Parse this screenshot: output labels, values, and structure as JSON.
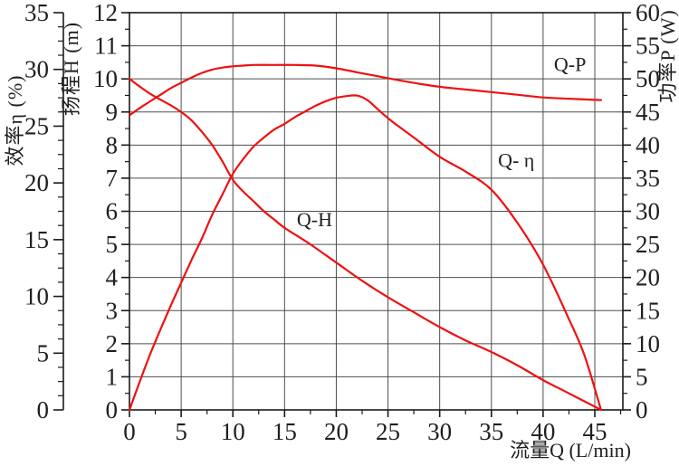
{
  "chart_data": {
    "type": "line",
    "title": "",
    "background": "#ffffff",
    "curve_color": "#ee1111",
    "grid_color": "#4d4d4d",
    "axis_color": "#1a1a1a",
    "text_color": "#1f1f1f",
    "grid": "on",
    "x_axis": {
      "title": "流量Q (L/min)",
      "min": 0,
      "max": 47.7,
      "major_ticks": [
        0,
        5,
        10,
        15,
        20,
        25,
        30,
        35,
        40,
        45
      ],
      "minor_step": 2.5
    },
    "left_outer_axis": {
      "title": "效率η (%)",
      "min": 0,
      "max": 35,
      "major_ticks": [
        0,
        5,
        10,
        15,
        20,
        25,
        30,
        35
      ],
      "minor_step": 1.25
    },
    "left_inner_axis": {
      "title": "扬程H (m)",
      "min": 0,
      "max": 12,
      "major_ticks": [
        0,
        1,
        2,
        3,
        4,
        5,
        6,
        7,
        8,
        9,
        10,
        11,
        12
      ],
      "minor_step": 0.5
    },
    "right_axis": {
      "title": "功率P (W)",
      "min": 0,
      "max": 60,
      "major_ticks": [
        0,
        5,
        10,
        15,
        20,
        25,
        30,
        35,
        40,
        45,
        50,
        55,
        60
      ],
      "minor_step": 2.5
    },
    "series": [
      {
        "name": "Q-H",
        "axis": "head",
        "points": [
          [
            0,
            10.0
          ],
          [
            2,
            9.55
          ],
          [
            4,
            9.2
          ],
          [
            5,
            9.0
          ],
          [
            6,
            8.75
          ],
          [
            7,
            8.4
          ],
          [
            8,
            8.0
          ],
          [
            9,
            7.5
          ],
          [
            10,
            6.95
          ],
          [
            11,
            6.6
          ],
          [
            12,
            6.3
          ],
          [
            13,
            6.0
          ],
          [
            14,
            5.75
          ],
          [
            15,
            5.5
          ],
          [
            17.5,
            5.0
          ],
          [
            20,
            4.45
          ],
          [
            22.5,
            3.9
          ],
          [
            25,
            3.4
          ],
          [
            27.5,
            2.95
          ],
          [
            30,
            2.5
          ],
          [
            32.5,
            2.1
          ],
          [
            35,
            1.75
          ],
          [
            37.5,
            1.35
          ],
          [
            40,
            0.9
          ],
          [
            42.5,
            0.5
          ],
          [
            45.6,
            0.0
          ]
        ]
      },
      {
        "name": "Q-η",
        "axis": "efficiency",
        "points": [
          [
            0,
            0
          ],
          [
            1,
            2.5
          ],
          [
            2,
            4.9
          ],
          [
            3,
            7.1
          ],
          [
            4,
            9.2
          ],
          [
            5,
            11.2
          ],
          [
            6,
            13.2
          ],
          [
            7,
            15.1
          ],
          [
            8,
            17.2
          ],
          [
            9,
            19.0
          ],
          [
            10,
            20.8
          ],
          [
            11,
            22.1
          ],
          [
            12,
            23.2
          ],
          [
            13,
            24.0
          ],
          [
            14,
            24.7
          ],
          [
            15,
            25.2
          ],
          [
            16,
            25.8
          ],
          [
            17,
            26.3
          ],
          [
            18,
            26.8
          ],
          [
            19,
            27.2
          ],
          [
            20,
            27.5
          ],
          [
            21,
            27.65
          ],
          [
            22,
            27.7
          ],
          [
            23,
            27.3
          ],
          [
            24,
            26.5
          ],
          [
            25,
            25.7
          ],
          [
            26,
            25.0
          ],
          [
            27.5,
            24.0
          ],
          [
            30,
            22.3
          ],
          [
            32.5,
            21.0
          ],
          [
            35,
            19.4
          ],
          [
            37.5,
            16.5
          ],
          [
            40,
            12.8
          ],
          [
            42.5,
            8.0
          ],
          [
            44,
            4.8
          ],
          [
            45.6,
            0.0
          ]
        ]
      },
      {
        "name": "Q-P",
        "axis": "power",
        "points": [
          [
            0,
            44.5
          ],
          [
            1,
            45.6
          ],
          [
            2,
            46.6
          ],
          [
            3,
            47.6
          ],
          [
            4,
            48.6
          ],
          [
            5,
            49.4
          ],
          [
            6,
            50.2
          ],
          [
            7,
            50.9
          ],
          [
            8,
            51.4
          ],
          [
            9,
            51.7
          ],
          [
            10,
            51.9
          ],
          [
            11,
            52.0
          ],
          [
            12,
            52.1
          ],
          [
            14,
            52.1
          ],
          [
            16,
            52.1
          ],
          [
            18,
            52.0
          ],
          [
            20,
            51.6
          ],
          [
            22,
            51.0
          ],
          [
            24,
            50.4
          ],
          [
            25,
            50.1
          ],
          [
            27.5,
            49.4
          ],
          [
            30,
            48.8
          ],
          [
            32.5,
            48.4
          ],
          [
            35,
            48.0
          ],
          [
            37.5,
            47.6
          ],
          [
            40,
            47.2
          ],
          [
            42.5,
            47.0
          ],
          [
            45.6,
            46.8
          ]
        ]
      }
    ],
    "curve_labels": [
      {
        "text": "Q-P",
        "axis": "power",
        "q": 42.6,
        "v": 51.2
      },
      {
        "text": "Q- η",
        "axis": "efficiency",
        "q": 37.4,
        "v": 21.4
      },
      {
        "text": "Q-H",
        "axis": "head",
        "q": 17.9,
        "v": 5.55
      }
    ]
  }
}
